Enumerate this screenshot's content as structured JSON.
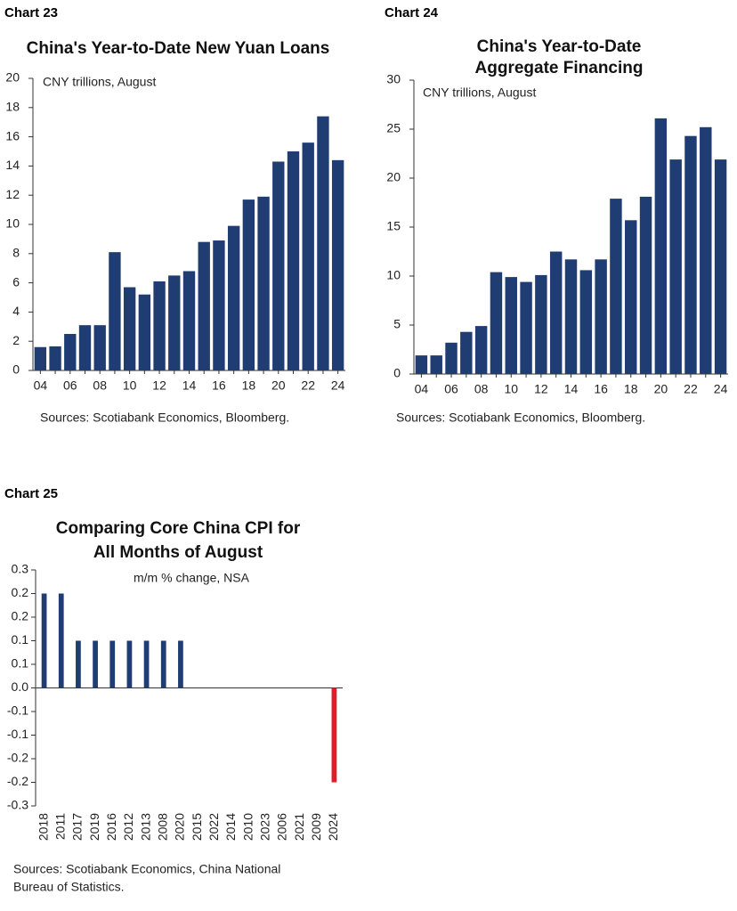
{
  "chart_data": [
    {
      "type": "bar",
      "chart_label": "Chart 23",
      "title": [
        "China's Year-to-Date New Yuan Loans"
      ],
      "subtitle": "CNY trillions, August",
      "categories": [
        "04",
        null,
        "06",
        null,
        "08",
        null,
        "10",
        null,
        "12",
        null,
        "14",
        null,
        "16",
        null,
        "18",
        null,
        "20",
        null,
        "22",
        null,
        "24"
      ],
      "values": [
        1.6,
        1.65,
        2.5,
        3.1,
        3.1,
        8.1,
        5.7,
        5.2,
        6.1,
        6.5,
        6.8,
        8.8,
        8.9,
        9.9,
        11.7,
        11.9,
        14.3,
        15.0,
        15.6,
        17.4,
        14.4
      ],
      "color": "#1f3d73",
      "ylim": [
        0,
        20
      ],
      "yticks": [
        0,
        2,
        4,
        6,
        8,
        10,
        12,
        14,
        16,
        18,
        20
      ],
      "source": [
        "Sources: Scotiabank Economics, Bloomberg."
      ]
    },
    {
      "type": "bar",
      "chart_label": "Chart 24",
      "title": [
        "China's Year-to-Date",
        "Aggregate Financing"
      ],
      "subtitle": "CNY trillions, August",
      "categories": [
        "04",
        null,
        "06",
        null,
        "08",
        null,
        "10",
        null,
        "12",
        null,
        "14",
        null,
        "16",
        null,
        "18",
        null,
        "20",
        null,
        "22",
        null,
        "24"
      ],
      "values": [
        1.9,
        1.9,
        3.2,
        4.3,
        4.9,
        10.4,
        9.9,
        9.4,
        10.1,
        12.5,
        11.7,
        10.6,
        11.7,
        17.9,
        15.7,
        18.1,
        26.1,
        21.9,
        24.3,
        25.2,
        21.9
      ],
      "color": "#1f3d73",
      "ylim": [
        0,
        30
      ],
      "yticks": [
        0,
        5,
        10,
        15,
        20,
        25,
        30
      ],
      "source": [
        "Sources: Scotiabank Economics, Bloomberg."
      ]
    },
    {
      "type": "bar",
      "chart_label": "Chart 25",
      "title": [
        "Comparing Core China CPI for",
        "All Months of August"
      ],
      "subtitle": "m/m % change, NSA",
      "categories": [
        "2018",
        "2011",
        "2017",
        "2019",
        "2016",
        "2012",
        "2013",
        "2008",
        "2020",
        "2015",
        "2022",
        "2014",
        "2010",
        "2023",
        "2006",
        "2021",
        "2009",
        "2024"
      ],
      "values": [
        0.24,
        0.24,
        0.12,
        0.12,
        0.12,
        0.12,
        0.12,
        0.12,
        0.12,
        0,
        0,
        0,
        0,
        0,
        0,
        0,
        0,
        -0.24
      ],
      "colors": [
        "#1f3d73",
        "#1f3d73",
        "#1f3d73",
        "#1f3d73",
        "#1f3d73",
        "#1f3d73",
        "#1f3d73",
        "#1f3d73",
        "#1f3d73",
        "#1f3d73",
        "#1f3d73",
        "#1f3d73",
        "#1f3d73",
        "#1f3d73",
        "#1f3d73",
        "#1f3d73",
        "#1f3d73",
        "#e31a2b"
      ],
      "ylim": [
        -0.3,
        0.3
      ],
      "yticks": [
        -0.3,
        {
          "value": -0.24,
          "label": "-0.2"
        },
        {
          "value": -0.18,
          "label": "-0.2"
        },
        {
          "value": -0.12,
          "label": "-0.1"
        },
        {
          "value": -0.06,
          "label": "-0.1"
        },
        {
          "value": 0,
          "label": "0.0"
        },
        {
          "value": 0.06,
          "label": "0.1"
        },
        {
          "value": 0.12,
          "label": "0.1"
        },
        {
          "value": 0.18,
          "label": "0.2"
        },
        {
          "value": 0.24,
          "label": "0.2"
        },
        0.3
      ],
      "rotated_x_labels": true,
      "source": [
        "Sources: Scotiabank Economics, China National",
        "Bureau of Statistics."
      ]
    }
  ]
}
